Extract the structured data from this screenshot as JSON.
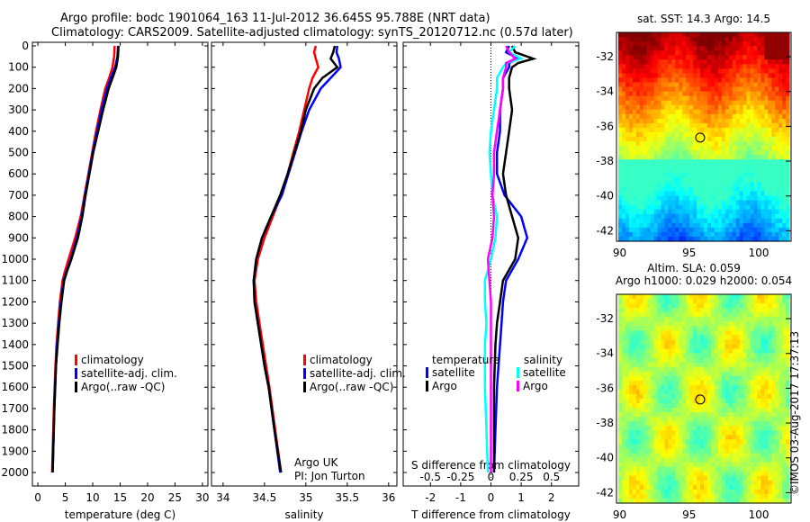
{
  "title_line1": "Argo profile: bodc 1901064_163 11-Jul-2012 36.645S 95.788E (NRT data)",
  "title_line2": "Climatology: CARS2009. Satellite-adjusted climatology: synTS_20120712.nc (0.57d later)",
  "credit": "Argo UK",
  "pi": "PI: Jon Turton",
  "timestamp": "©IMOS 03-Aug-2017 17:37:13",
  "colors": {
    "climatology": "#ff0000",
    "satellite": "#0000ff",
    "argo": "#000000",
    "sal_satellite": "#00ffff",
    "sal_argo": "#ff00ff"
  },
  "chart_data": [
    {
      "type": "line",
      "id": "temp",
      "xlabel": "temperature (deg C)",
      "xlim": [
        -1,
        31
      ],
      "ylim": [
        0,
        2080
      ],
      "xticks": [
        0,
        5,
        10,
        15,
        20,
        25,
        30
      ],
      "yticks": [
        0,
        100,
        200,
        300,
        400,
        500,
        600,
        700,
        800,
        900,
        1000,
        1100,
        1200,
        1300,
        1400,
        1500,
        1600,
        1700,
        1800,
        1900,
        2000
      ],
      "legend": [
        "climatology",
        "satellite-adj. clim.",
        "Argo(..raw -QC)"
      ],
      "depth": [
        0,
        50,
        100,
        150,
        200,
        300,
        400,
        500,
        600,
        700,
        800,
        900,
        1000,
        1050,
        1100,
        1200,
        1300,
        1400,
        1500,
        1700,
        2000
      ],
      "series": [
        {
          "name": "climatology",
          "color": "#ff0000",
          "values": [
            14.0,
            13.9,
            13.6,
            13.0,
            12.3,
            11.4,
            10.6,
            9.9,
            9.2,
            8.5,
            7.8,
            6.8,
            5.6,
            5.0,
            4.5,
            4.0,
            3.7,
            3.4,
            3.2,
            2.9,
            2.6
          ]
        },
        {
          "name": "satellite-adj. clim.",
          "color": "#0000ff",
          "values": [
            14.6,
            14.5,
            14.1,
            13.3,
            12.6,
            11.6,
            10.8,
            10.0,
            9.3,
            8.6,
            8.0,
            7.1,
            6.0,
            5.3,
            4.7,
            4.2,
            3.8,
            3.5,
            3.3,
            3.0,
            2.7
          ]
        },
        {
          "name": "Argo(..raw -QC)",
          "color": "#000000",
          "values": [
            14.7,
            14.6,
            14.3,
            13.6,
            12.9,
            11.9,
            11.0,
            10.1,
            9.4,
            8.7,
            8.1,
            7.3,
            6.1,
            5.4,
            4.8,
            4.3,
            3.9,
            3.6,
            3.3,
            3.0,
            2.7
          ]
        }
      ]
    },
    {
      "type": "line",
      "id": "sal",
      "xlabel": "salinity",
      "xlim": [
        33.86,
        36.1
      ],
      "ylim": [
        0,
        2080
      ],
      "xticks": [
        34,
        34.5,
        35,
        35.5,
        36
      ],
      "legend": [
        "climatology",
        "satellite-adj. clim.",
        "Argo(..raw -QC)"
      ],
      "depth": [
        0,
        30,
        60,
        100,
        150,
        200,
        300,
        400,
        500,
        600,
        700,
        800,
        900,
        1000,
        1100,
        1200,
        1300,
        1400,
        1500,
        1600,
        1800,
        2000
      ],
      "series": [
        {
          "name": "climatology",
          "color": "#ff0000",
          "values": [
            35.12,
            35.1,
            35.12,
            35.15,
            35.08,
            35.04,
            34.98,
            34.92,
            34.85,
            34.78,
            34.7,
            34.6,
            34.5,
            34.42,
            34.38,
            34.4,
            34.44,
            34.48,
            34.52,
            34.56,
            34.63,
            34.7
          ]
        },
        {
          "name": "satellite-adj. clim.",
          "color": "#0000ff",
          "values": [
            35.38,
            35.37,
            35.4,
            35.42,
            35.3,
            35.18,
            35.04,
            34.95,
            34.87,
            34.79,
            34.71,
            34.58,
            34.47,
            34.4,
            34.37,
            34.38,
            34.42,
            34.46,
            34.5,
            34.55,
            34.62,
            34.69
          ]
        },
        {
          "name": "Argo(..raw -QC)",
          "color": "#000000",
          "values": [
            35.35,
            35.33,
            35.3,
            35.38,
            35.2,
            35.1,
            35.0,
            34.94,
            34.86,
            34.78,
            34.69,
            34.58,
            34.47,
            34.4,
            34.37,
            34.38,
            34.42,
            34.46,
            34.5,
            34.55,
            34.62,
            34.7
          ]
        }
      ]
    },
    {
      "type": "line",
      "id": "diff",
      "xlabel": "T difference from climatology",
      "x2label": "S difference from climatology",
      "xlim": [
        -2.9,
        2.9
      ],
      "ylim": [
        0,
        2080
      ],
      "xticks": [
        -2,
        -1,
        0,
        1,
        2
      ],
      "x2ticks": [
        -0.5,
        -0.25,
        0,
        0.25,
        0.5
      ],
      "legend_temperature": "temperature",
      "legend_salinity": "salinity",
      "legend_satellite": "satellite",
      "legend_argo": "Argo",
      "depth": [
        0,
        30,
        60,
        80,
        100,
        150,
        200,
        300,
        400,
        500,
        600,
        700,
        800,
        900,
        1000,
        1100,
        1200,
        1300,
        1400,
        1600,
        1800,
        2000
      ],
      "series": [
        {
          "name": "T satellite",
          "color": "#0000ff",
          "values": [
            0.6,
            0.5,
            0.9,
            0.6,
            0.6,
            0.4,
            0.4,
            0.3,
            0.3,
            0.2,
            0.2,
            0.45,
            1.0,
            1.2,
            0.9,
            0.5,
            0.4,
            0.35,
            0.3,
            0.2,
            0.15,
            0.1
          ]
        },
        {
          "name": "T Argo",
          "color": "#000000",
          "values": [
            0.7,
            0.8,
            1.4,
            0.9,
            0.7,
            0.6,
            0.6,
            0.7,
            0.6,
            0.5,
            0.4,
            0.5,
            0.7,
            0.9,
            0.8,
            0.4,
            0.3,
            0.2,
            0.15,
            0.1,
            0.1,
            0.1
          ]
        },
        {
          "name": "S satellite",
          "color": "#00ffff",
          "values": [
            0.8,
            0.6,
            1.0,
            0.5,
            0.4,
            0.2,
            0.2,
            0.1,
            0.0,
            -0.05,
            0.0,
            0.05,
            0.2,
            0.15,
            0.0,
            -0.2,
            -0.2,
            -0.15,
            -0.2,
            -0.2,
            -0.15,
            -0.1
          ]
        },
        {
          "name": "S Argo",
          "color": "#ff00ff",
          "values": [
            0.5,
            0.6,
            0.8,
            0.5,
            0.5,
            0.4,
            0.4,
            0.3,
            0.2,
            0.1,
            0.1,
            0.05,
            0.1,
            0.05,
            -0.1,
            -0.05,
            0.0,
            0.0,
            0.0,
            0.0,
            0.0,
            0.0
          ]
        }
      ]
    },
    {
      "type": "heatmap",
      "id": "sst",
      "title": "sat. SST: 14.3 Argo: 14.5",
      "xticks": [
        90,
        95,
        100
      ],
      "yticks": [
        -32,
        -34,
        -36,
        -38,
        -40,
        -42
      ],
      "xlim": [
        89.9,
        102.2
      ],
      "ylim": [
        -42.6,
        -30.6
      ],
      "float": [
        95.788,
        -36.645
      ]
    },
    {
      "type": "heatmap",
      "id": "sla",
      "title": "Altim. SLA: 0.059",
      "subtitle": "Argo h1000: 0.029 h2000: 0.054",
      "xticks": [
        90,
        95,
        100
      ],
      "yticks": [
        -32,
        -34,
        -36,
        -38,
        -40,
        -42
      ],
      "xlim": [
        89.9,
        102.2
      ],
      "ylim": [
        -42.6,
        -30.6
      ],
      "float": [
        95.788,
        -36.645
      ]
    }
  ]
}
